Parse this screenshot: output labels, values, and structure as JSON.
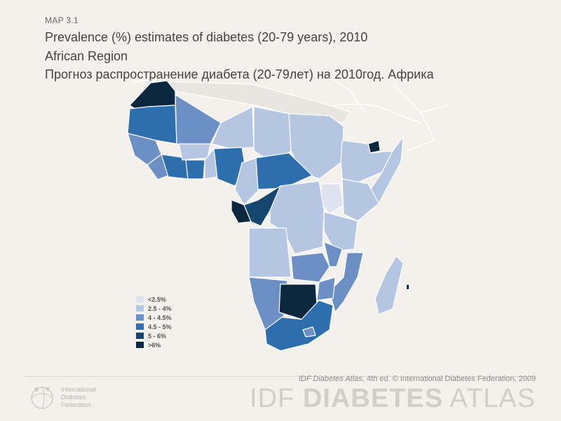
{
  "header": {
    "map_label": "MAP 3.1",
    "title_en": "Prevalence (%) estimates of diabetes (20-79 years), 2010",
    "subtitle_en": "African Region",
    "title_ru": "Прогноз распространение  диабета (20-79лет) на 2010год. Африка"
  },
  "colors": {
    "lt2_5": "#dde4f0",
    "c2_5_4": "#b4c6e2",
    "c4_4_5": "#6c8fc6",
    "c4_5_5": "#2d6fae",
    "c5_6": "#15466f",
    "gt6": "#0b2740",
    "background": "#f4f1ec",
    "border": "#ffffff"
  },
  "legend": [
    {
      "label": "<2.5%",
      "color": "#dde4f0"
    },
    {
      "label": "2.5 - 4%",
      "color": "#b4c6e2"
    },
    {
      "label": "4 - 4.5%",
      "color": "#6c8fc6"
    },
    {
      "label": "4.5 - 5%",
      "color": "#2d6fae"
    },
    {
      "label": "5 - 6%",
      "color": "#15466f"
    },
    {
      "label": ">6%",
      "color": "#0b2740"
    }
  ],
  "footer": {
    "credit_italic": "IDF Diabetes Atlas",
    "credit_rest": ", 4th ed.  © International Diabetes Federation, 2009",
    "atlas_a": "IDF ",
    "atlas_b": "DIABETES",
    "atlas_c": " ATLAS",
    "org_line1": "International",
    "org_line2": "Diabetes",
    "org_line3": "Federation"
  },
  "icons": [
    "idf-logo-icon"
  ]
}
